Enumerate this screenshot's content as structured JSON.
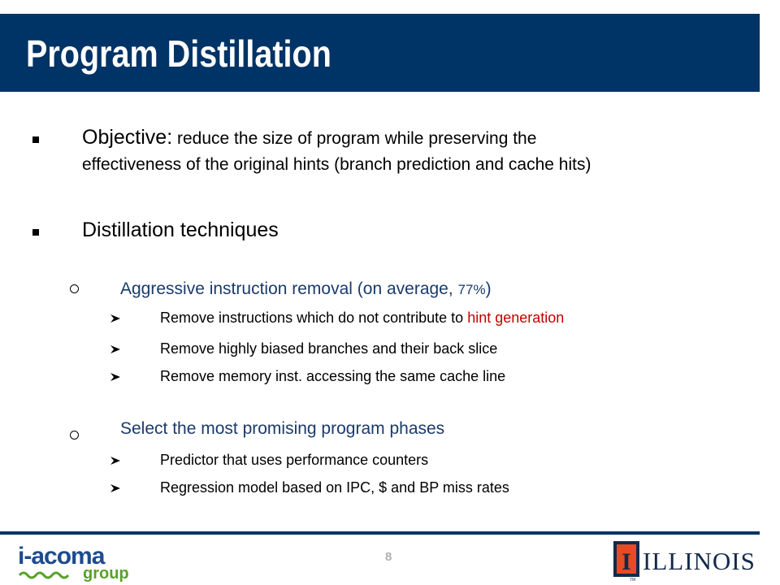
{
  "slide": {
    "title": "Program Distillation",
    "page_number": "8"
  },
  "bullets": {
    "objective": {
      "label": "Objective:",
      "line1": " reduce the size of program while preserving the",
      "line2": "effectiveness of the original hints (branch prediction and cache hits)"
    },
    "techniques": {
      "label": "Distillation techniques"
    }
  },
  "sub1": {
    "heading_main": "Aggressive instruction removal (on average, ",
    "heading_pct": "77%",
    "heading_close": ")",
    "items": [
      {
        "pre": "Remove instructions which do not contribute to ",
        "highlight": "hint generation"
      },
      {
        "pre": "Remove highly biased branches and their back slice",
        "highlight": ""
      },
      {
        "pre": "Remove memory inst. accessing the same cache line",
        "highlight": ""
      }
    ]
  },
  "sub2": {
    "heading": "Select the most promising program phases",
    "items": [
      "Predictor that uses performance counters",
      "Regression model based on IPC, $ and BP miss rates"
    ]
  },
  "logos": {
    "left_line1": "i-acoma",
    "left_line2": "group",
    "right": "ILLINOIS",
    "right_mark": "I",
    "tm": "TM"
  },
  "colors": {
    "title_bar": "#003366",
    "subheading": "#1b3a6b",
    "highlight": "#c00000",
    "logo_blue": "#1e4b8f",
    "logo_green": "#5aa02c",
    "illinois_orange": "#e84a27"
  }
}
